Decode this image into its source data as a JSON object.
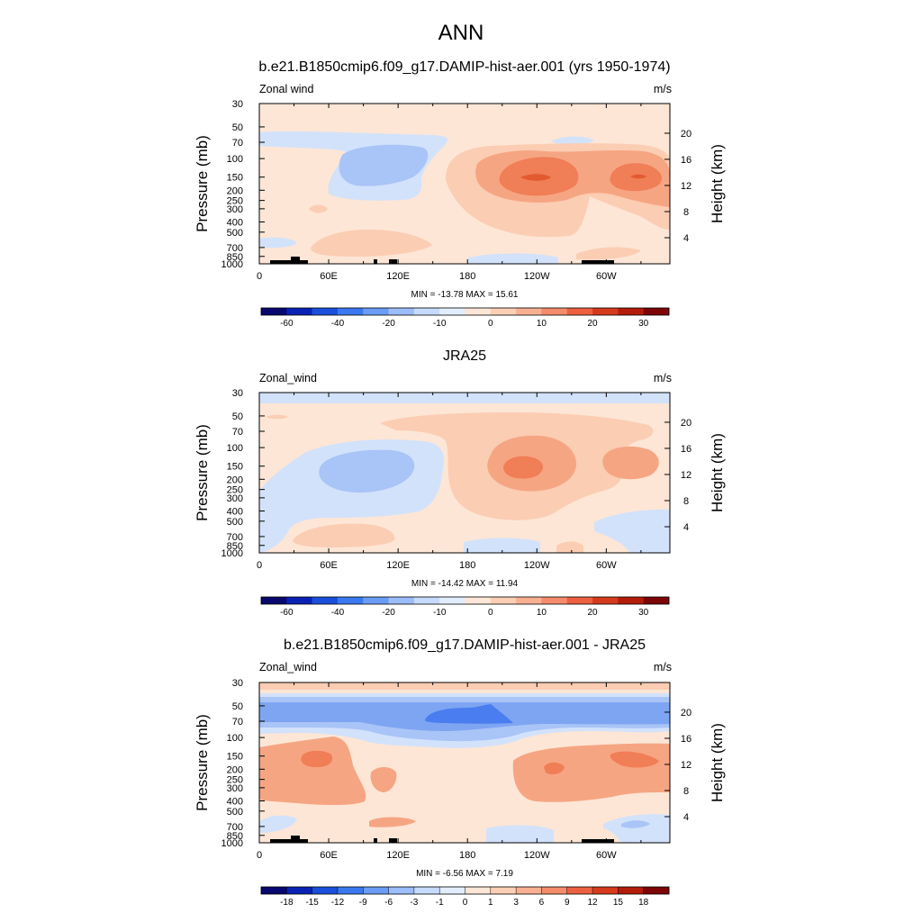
{
  "figure": {
    "title": "ANN"
  },
  "colors": {
    "frame": "#000000",
    "background": "#ffffff",
    "topography": "#000000"
  },
  "chart_data": [
    {
      "type": "heatmap",
      "title": "b.e21.B1850cmip6.f09_g17.DAMIP-hist-aer.001 (yrs 1950-1974)",
      "corner_left": "Zonal wind",
      "corner_right": "m/s",
      "ylabel": "Pressure (mb)",
      "ylabel_right": "Height (km)",
      "x_ticks": [
        "0",
        "60E",
        "120E",
        "180",
        "120W",
        "60W"
      ],
      "y_ticks": [
        "30",
        "50",
        "70",
        "100",
        "150",
        "200",
        "250",
        "300",
        "400",
        "500",
        "700",
        "850",
        "1000"
      ],
      "y2_ticks": [
        "20",
        "16",
        "12",
        "8",
        "4"
      ],
      "stats": "MIN = -13.78  MAX =  15.61",
      "xlim": [
        0,
        355
      ],
      "ylim_mb": [
        1000,
        30
      ],
      "log_y": true,
      "contour_levels": [
        "-60",
        "-40",
        "-20",
        "-10",
        "0",
        "10",
        "20",
        "30"
      ],
      "colorbar_labels": [
        "-60",
        "-40",
        "-20",
        "-10",
        "0",
        "10",
        "20",
        "30"
      ],
      "colorbar_colors": [
        "#08086e",
        "#0a22b4",
        "#1a4fdc",
        "#3a78f0",
        "#6a9cf5",
        "#9bbdf8",
        "#c6dbfb",
        "#e2eefd",
        "#fde6d6",
        "#fbcfb5",
        "#f8b092",
        "#f48b6b",
        "#ec6040",
        "#d63a1c",
        "#b41c0a",
        "#7c0606"
      ],
      "fill_colors": {
        "weak_negative": "#d2e2fb",
        "moderate_negative": "#a9c4f6",
        "weak_positive": "#fde6d6",
        "moderate_positive": "#fbcdb3",
        "strong_positive": "#f6a583",
        "stronger_positive": "#f07e56",
        "max_positive": "#e35a30"
      },
      "features": [
        {
          "label": "zonal-mean-background",
          "level": "weak_positive"
        },
        {
          "label": "easterly-eastern-hemisphere",
          "lon": [
            80,
            160
          ],
          "p_mb": [
            300,
            70
          ],
          "level": "moderate_negative",
          "core": -13.78
        },
        {
          "label": "westerly-jet-pacific",
          "lon": [
            190,
            320
          ],
          "p_mb": [
            250,
            100
          ],
          "level": "stronger_positive",
          "core": 15.61
        },
        {
          "label": "westerly-jet-atlantic",
          "lon": [
            300,
            355
          ],
          "p_mb": [
            250,
            100
          ],
          "level": "stronger_positive"
        }
      ]
    },
    {
      "type": "heatmap",
      "title": "JRA25",
      "corner_left": "Zonal_wind",
      "corner_right": "m/s",
      "ylabel": "Pressure (mb)",
      "ylabel_right": "Height (km)",
      "x_ticks": [
        "0",
        "60E",
        "120E",
        "180",
        "120W",
        "60W"
      ],
      "y_ticks": [
        "30",
        "50",
        "70",
        "100",
        "150",
        "200",
        "250",
        "300",
        "400",
        "500",
        "700",
        "850",
        "1000"
      ],
      "y2_ticks": [
        "20",
        "16",
        "12",
        "8",
        "4"
      ],
      "stats": "MIN = -14.42  MAX =  11.94",
      "xlim": [
        0,
        355
      ],
      "ylim_mb": [
        1000,
        30
      ],
      "log_y": true,
      "contour_levels": [
        "-60",
        "-40",
        "-20",
        "-10",
        "0",
        "10",
        "20",
        "30"
      ],
      "colorbar_labels": [
        "-60",
        "-40",
        "-20",
        "-10",
        "0",
        "10",
        "20",
        "30"
      ],
      "colorbar_colors": [
        "#08086e",
        "#0a22b4",
        "#1a4fdc",
        "#3a78f0",
        "#6a9cf5",
        "#9bbdf8",
        "#c6dbfb",
        "#e2eefd",
        "#fde6d6",
        "#fbcfb5",
        "#f8b092",
        "#f48b6b",
        "#ec6040",
        "#d63a1c",
        "#b41c0a",
        "#7c0606"
      ],
      "fill_colors": {
        "weak_negative": "#d2e2fb",
        "moderate_negative": "#a9c4f6",
        "weak_positive": "#fde6d6",
        "moderate_positive": "#fbcdb3",
        "strong_positive": "#f6a583",
        "stronger_positive": "#f07e56"
      },
      "features": [
        {
          "label": "easterly-top",
          "p_mb": [
            35,
            30
          ],
          "level": "weak_negative"
        },
        {
          "label": "easterly-eastern-hemisphere",
          "lon": [
            60,
            150
          ],
          "p_mb": [
            250,
            100
          ],
          "level": "moderate_negative",
          "core": -14.42
        },
        {
          "label": "westerly-jet-pacific",
          "lon": [
            200,
            300
          ],
          "p_mb": [
            250,
            90
          ],
          "level": "stronger_positive",
          "core": 11.94
        }
      ]
    },
    {
      "type": "heatmap",
      "title": "b.e21.B1850cmip6.f09_g17.DAMIP-hist-aer.001 - JRA25",
      "corner_left": "Zonal_wind",
      "corner_right": "m/s",
      "ylabel": "Pressure (mb)",
      "ylabel_right": "Height (km)",
      "x_ticks": [
        "0",
        "60E",
        "120E",
        "180",
        "120W",
        "60W"
      ],
      "y_ticks": [
        "30",
        "50",
        "70",
        "100",
        "150",
        "200",
        "250",
        "300",
        "400",
        "500",
        "700",
        "850",
        "1000"
      ],
      "y2_ticks": [
        "20",
        "16",
        "12",
        "8",
        "4"
      ],
      "stats": "MIN =  -6.56  MAX =   7.19",
      "xlim": [
        0,
        355
      ],
      "ylim_mb": [
        1000,
        30
      ],
      "log_y": true,
      "contour_levels": [
        "-18",
        "-15",
        "-12",
        "-9",
        "-6",
        "-3",
        "-1",
        "0",
        "1",
        "3",
        "6",
        "9",
        "12",
        "15",
        "18"
      ],
      "colorbar_labels": [
        "-18",
        "-15",
        "-12",
        "-9",
        "-6",
        "-3",
        "-1",
        "0",
        "1",
        "3",
        "6",
        "9",
        "12",
        "15",
        "18"
      ],
      "colorbar_colors": [
        "#08086e",
        "#0a22b4",
        "#1a4fdc",
        "#3a78f0",
        "#6a9cf5",
        "#9bbdf8",
        "#c6dbfb",
        "#e2eefd",
        "#fde6d6",
        "#fbcfb5",
        "#f8b092",
        "#f48b6b",
        "#ec6040",
        "#d63a1c",
        "#b41c0a",
        "#7c0606"
      ],
      "fill_colors": {
        "weak_negative": "#d2e2fb",
        "moderate_negative": "#a9c4f6",
        "strong_negative": "#7ea5f2",
        "stronger_negative": "#4a7df0",
        "weak_positive": "#fde6d6",
        "moderate_positive": "#fbcdb3",
        "strong_positive": "#f6a583",
        "stronger_positive": "#f07e56"
      },
      "features": [
        {
          "label": "negative-band-stratosphere",
          "p_mb": [
            55,
            90
          ],
          "level": "strong_negative"
        },
        {
          "label": "negative-core-date-line",
          "lon": [
            150,
            215
          ],
          "p_mb": [
            55,
            75
          ],
          "level": "stronger_negative",
          "core": -6.56
        },
        {
          "label": "positive-upper-troposphere",
          "p_mb": [
            120,
            400
          ],
          "level": "strong_positive"
        },
        {
          "label": "positive-core-west-pacific",
          "lon": [
            240,
            265
          ],
          "p_mb": [
            170,
            220
          ],
          "level": "stronger_positive",
          "core": 7.19
        }
      ]
    }
  ]
}
